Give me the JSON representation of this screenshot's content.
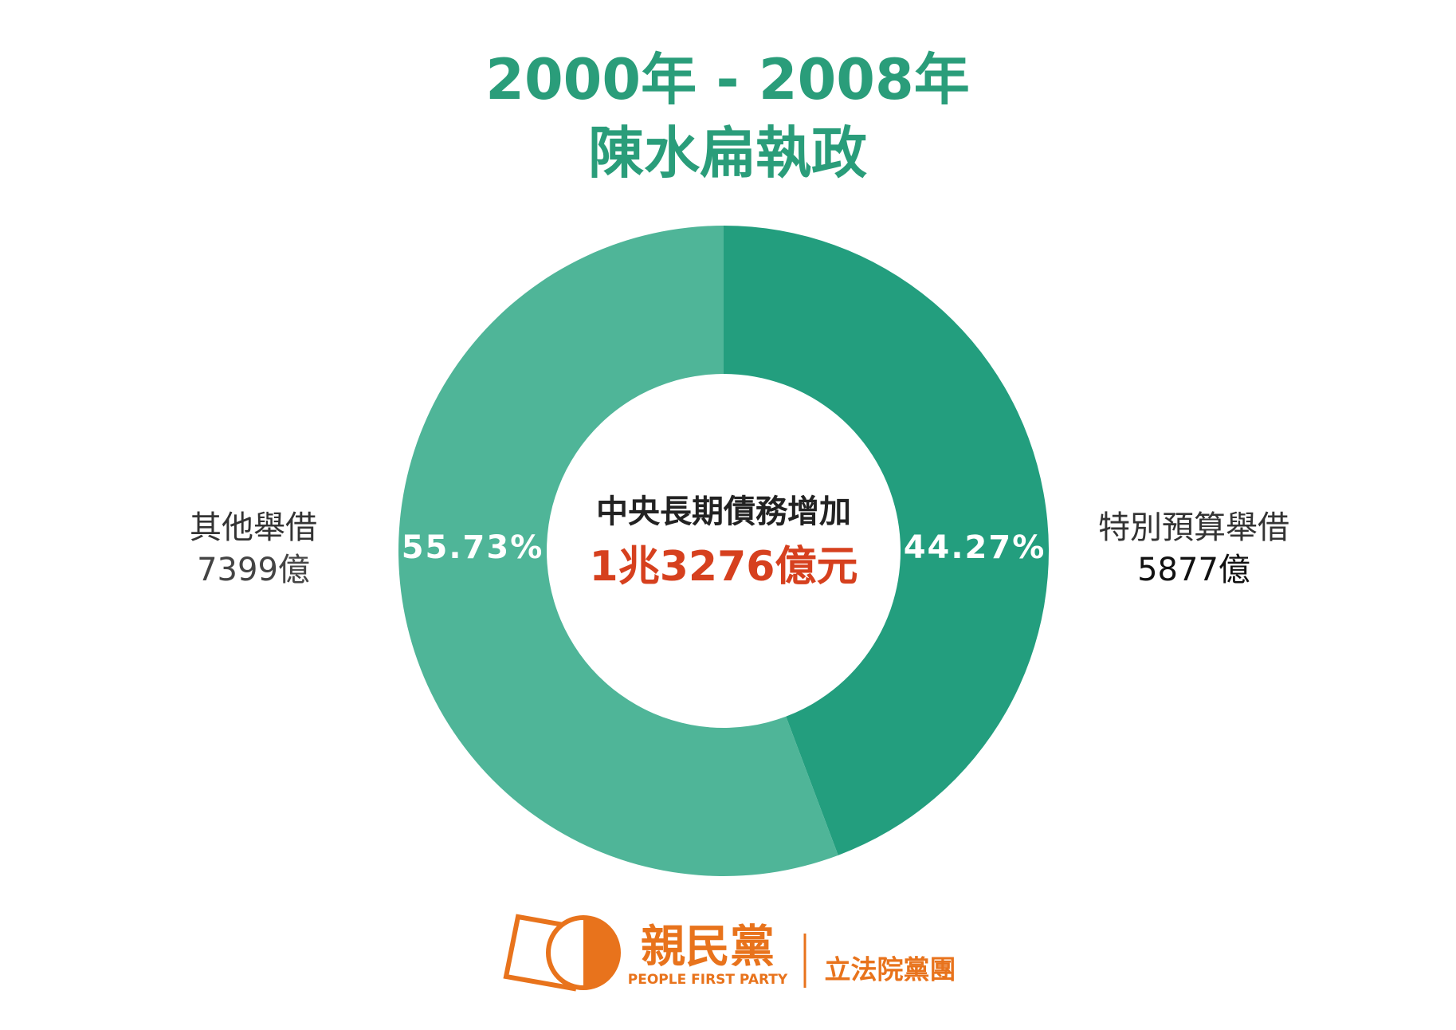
{
  "chart_data": {
    "type": "pie",
    "title": "2000年 - 2008年",
    "subtitle": "陳水扁執政",
    "categories": [
      "特別預算舉借",
      "其他舉借"
    ],
    "values": [
      44.27,
      55.73
    ],
    "value_labels": [
      "44.27%",
      "55.73%"
    ],
    "amount_labels": [
      "5877億",
      "7399億"
    ],
    "colors": [
      "#239e7e",
      "#4fb598"
    ],
    "center_label": "中央長期債務增加",
    "center_value": "1兆3276億元"
  },
  "footer": {
    "logo_text": "親民黨",
    "logo_subtext": "PEOPLE FIRST PARTY",
    "caucus": "立法院黨團"
  }
}
